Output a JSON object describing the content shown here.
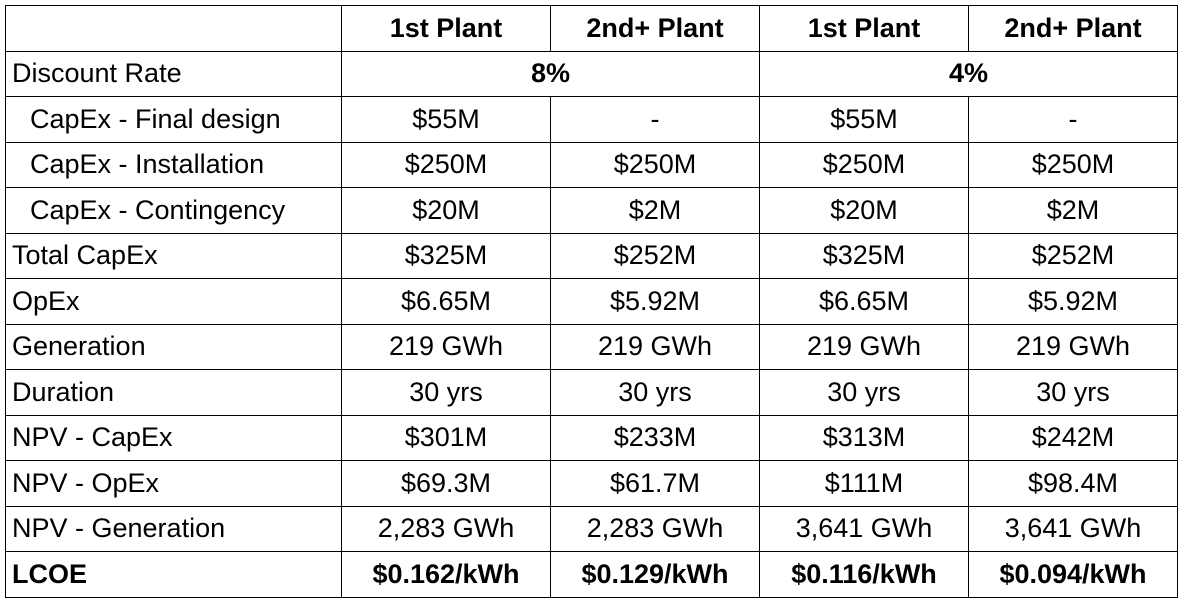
{
  "header": {
    "columns": [
      "1st Plant",
      "2nd+ Plant",
      "1st Plant",
      "2nd+ Plant"
    ]
  },
  "discount_rate": {
    "label": "Discount Rate",
    "values": [
      "8%",
      "4%"
    ]
  },
  "rows": [
    {
      "label": "CapEx - Final design",
      "values": [
        "$55M",
        "-",
        "$55M",
        "-"
      ]
    },
    {
      "label": "CapEx - Installation",
      "values": [
        "$250M",
        "$250M",
        "$250M",
        "$250M"
      ]
    },
    {
      "label": "CapEx - Contingency",
      "values": [
        "$20M",
        "$2M",
        "$20M",
        "$2M"
      ]
    },
    {
      "label": "Total CapEx",
      "values": [
        "$325M",
        "$252M",
        "$325M",
        "$252M"
      ]
    },
    {
      "label": "OpEx",
      "values": [
        "$6.65M",
        "$5.92M",
        "$6.65M",
        "$5.92M"
      ]
    },
    {
      "label": "Generation",
      "values": [
        "219 GWh",
        "219 GWh",
        "219 GWh",
        "219 GWh"
      ]
    },
    {
      "label": "Duration",
      "values": [
        "30 yrs",
        "30 yrs",
        "30 yrs",
        "30 yrs"
      ]
    },
    {
      "label": "NPV - CapEx",
      "values": [
        "$301M",
        "$233M",
        "$313M",
        "$242M"
      ]
    },
    {
      "label": "NPV - OpEx",
      "values": [
        "$69.3M",
        "$61.7M",
        "$111M",
        "$98.4M"
      ]
    },
    {
      "label": "NPV - Generation",
      "values": [
        "2,283 GWh",
        "2,283 GWh",
        "3,641 GWh",
        "3,641 GWh"
      ]
    },
    {
      "label": "LCOE",
      "values": [
        "$0.162/kWh",
        "$0.129/kWh",
        "$0.116/kWh",
        "$0.094/kWh"
      ]
    }
  ]
}
